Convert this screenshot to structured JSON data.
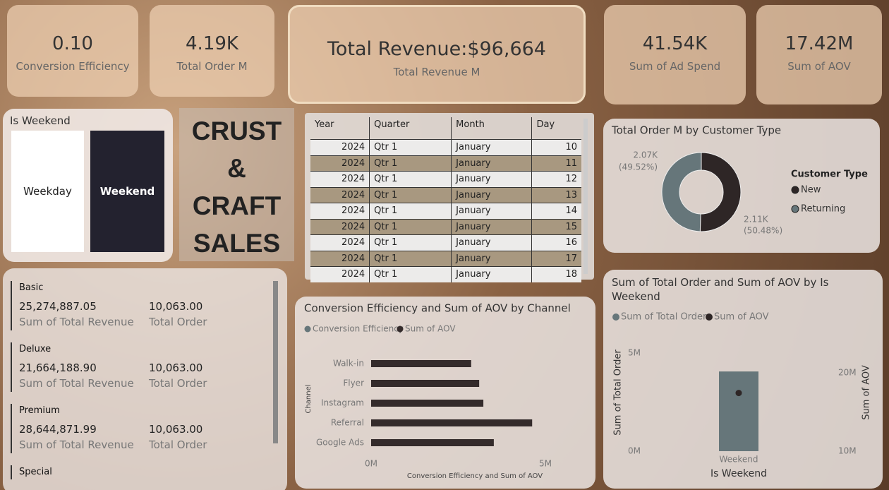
{
  "cards": [
    {
      "value": "0.10",
      "label": "Conversion Efficiency"
    },
    {
      "value": "4.19K",
      "label": "Total Order M"
    },
    {
      "value": "Total Revenue:$96,664",
      "label": "Total Revenue M"
    },
    {
      "value": "41.54K",
      "label": "Sum of Ad Spend"
    },
    {
      "value": "17.42M",
      "label": "Sum of AOV"
    }
  ],
  "slicer": {
    "title": "Is Weekend",
    "options": [
      "Weekday",
      "Weekend"
    ]
  },
  "logo": [
    "CRUST",
    "&",
    "CRAFT",
    "SALES"
  ],
  "table": {
    "columns": [
      "Year",
      "Quarter",
      "Month",
      "Day"
    ],
    "rows": [
      [
        2024,
        "Qtr 1",
        "January",
        10
      ],
      [
        2024,
        "Qtr 1",
        "January",
        11
      ],
      [
        2024,
        "Qtr 1",
        "January",
        12
      ],
      [
        2024,
        "Qtr 1",
        "January",
        13
      ],
      [
        2024,
        "Qtr 1",
        "January",
        14
      ],
      [
        2024,
        "Qtr 1",
        "January",
        15
      ],
      [
        2024,
        "Qtr 1",
        "January",
        16
      ],
      [
        2024,
        "Qtr 1",
        "January",
        17
      ],
      [
        2024,
        "Qtr 1",
        "January",
        18
      ]
    ]
  },
  "multirow": [
    {
      "name": "Basic",
      "revenue": "25,274,887.05",
      "revenue_label": "Sum of Total Revenue",
      "orders": "10,063.00",
      "orders_label": "Total Order"
    },
    {
      "name": "Deluxe",
      "revenue": "21,664,188.90",
      "revenue_label": "Sum of Total Revenue",
      "orders": "10,063.00",
      "orders_label": "Total Order"
    },
    {
      "name": "Premium",
      "revenue": "28,644,871.99",
      "revenue_label": "Sum of Total Revenue",
      "orders": "10,063.00",
      "orders_label": "Total Order"
    },
    {
      "name": "Special"
    }
  ],
  "chart_data": [
    {
      "type": "donut",
      "title": "Total Order M by Customer Type",
      "legend_title": "Customer Type",
      "categories": [
        "New",
        "Returning"
      ],
      "values": [
        2110,
        2070
      ],
      "value_labels": [
        "2.11K",
        "2.07K"
      ],
      "percents": [
        50.48,
        49.52
      ],
      "percent_labels": [
        "(50.48%)",
        "(49.52%)"
      ],
      "colors": [
        "#2e2626",
        "#66767a"
      ]
    },
    {
      "type": "hbar",
      "title": "Conversion Efficiency and Sum of AOV by Channel",
      "x_label": "Conversion Efficiency and Sum of AOV",
      "y_label": "Channel",
      "categories": [
        "Walk-in",
        "Flyer",
        "Instagram",
        "Referral",
        "Google Ads"
      ],
      "series": [
        {
          "name": "Conversion Efficiency",
          "color": "#66767a",
          "values": [
            0.02,
            0.02,
            0.02,
            0.02,
            0.02
          ]
        },
        {
          "name": "Sum of AOV",
          "color": "#342b2b",
          "values": [
            2870000,
            3100000,
            3220000,
            4620000,
            3520000
          ]
        }
      ],
      "xlim": [
        0,
        5500000
      ],
      "xticks": [
        {
          "value": 0,
          "label": "0M"
        },
        {
          "value": 5000000,
          "label": "5M"
        }
      ]
    },
    {
      "type": "combo",
      "title": "Sum of Total Order and Sum of AOV by Is Weekend",
      "x_label": "Is Weekend",
      "y_label": "Sum of Total Order",
      "y2_label": "Sum of AOV",
      "categories": [
        "Weekend"
      ],
      "series": [
        {
          "name": "Sum of Total Order",
          "color": "#66767a",
          "values": [
            4060000
          ]
        },
        {
          "name": "Sum of AOV",
          "color": "#2e2626",
          "axis": "y2",
          "values": [
            17420000
          ]
        }
      ],
      "ylim": [
        0,
        5360000
      ],
      "yticks": [
        {
          "value": 0,
          "label": "0M"
        },
        {
          "value": 5000000,
          "label": "5M"
        }
      ],
      "y2lim": [
        10000000,
        23420000
      ],
      "y2ticks": [
        {
          "value": 10000000,
          "label": "10M"
        },
        {
          "value": 20000000,
          "label": "20M"
        }
      ]
    }
  ]
}
